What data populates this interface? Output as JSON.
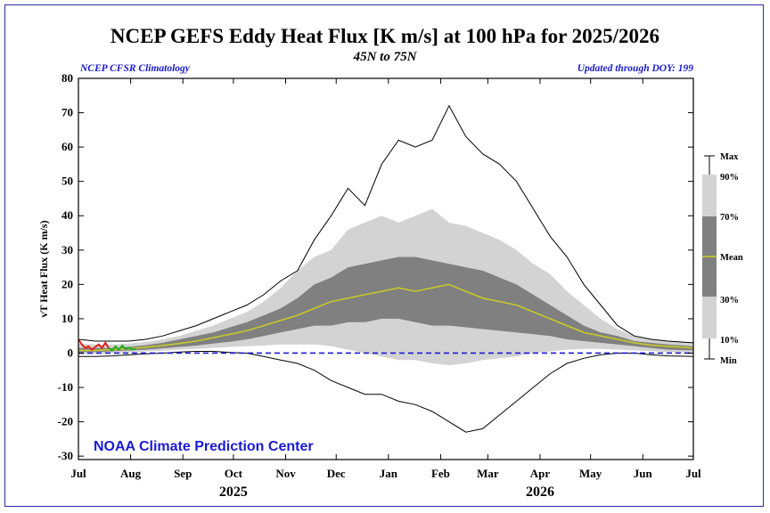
{
  "header": {
    "title": "NCEP GEFS Eddy Heat Flux [K m/s] at 100 hPa for 2025/2026",
    "subtitle": "45N to 75N",
    "left_note": "NCEP CFSR Climatology",
    "right_note": "Updated through DOY: 199",
    "credit": "NOAA Climate Prediction Center"
  },
  "legend": {
    "labels": [
      "Max",
      "90%",
      "70%",
      "Mean",
      "30%",
      "10%",
      "Min"
    ]
  },
  "colors": {
    "band_outer": "#d3d3d3",
    "band_inner": "#808080",
    "mean": "#c8c82a",
    "observed": "#e0201c",
    "forecast": "#22b022",
    "zero_line": "#1a1ad4",
    "frame": "#2a2aa8"
  },
  "chart_data": {
    "type": "area",
    "title": "NCEP GEFS Eddy Heat Flux [K m/s] at 100 hPa for 2025/2026",
    "subtitle": "45N to 75N",
    "ylabel": "vT Heat Flux (K m/s)",
    "xlabel": "",
    "ylim": [
      -31,
      80
    ],
    "yticks": [
      -30,
      -20,
      -10,
      0,
      10,
      20,
      30,
      40,
      50,
      60,
      70,
      80
    ],
    "x_unit": "days since Jul 1 2025",
    "xlim": [
      0,
      365
    ],
    "month_ticks": [
      {
        "label": "Jul",
        "x": 0
      },
      {
        "label": "Aug",
        "x": 31
      },
      {
        "label": "Sep",
        "x": 62
      },
      {
        "label": "Oct",
        "x": 92
      },
      {
        "label": "Nov",
        "x": 123
      },
      {
        "label": "Dec",
        "x": 153
      },
      {
        "label": "Jan",
        "x": 184
      },
      {
        "label": "Feb",
        "x": 215
      },
      {
        "label": "Mar",
        "x": 243
      },
      {
        "label": "Apr",
        "x": 274
      },
      {
        "label": "May",
        "x": 304
      },
      {
        "label": "Jun",
        "x": 335
      },
      {
        "label": "Jul",
        "x": 365
      }
    ],
    "years": [
      {
        "label": "2025",
        "x": 92
      },
      {
        "label": "2026",
        "x": 274
      }
    ],
    "x": [
      0,
      10,
      20,
      30,
      40,
      50,
      60,
      70,
      80,
      90,
      100,
      110,
      120,
      130,
      140,
      150,
      160,
      170,
      180,
      190,
      200,
      210,
      220,
      230,
      240,
      250,
      260,
      270,
      280,
      290,
      300,
      310,
      320,
      330,
      340,
      350,
      365
    ],
    "series": [
      {
        "name": "Max",
        "values": [
          4,
          3.5,
          3.5,
          3.5,
          4,
          5,
          6.5,
          8,
          10,
          12,
          14,
          17,
          21,
          24,
          33,
          40,
          48,
          43,
          55,
          62,
          60,
          62,
          72,
          63,
          58,
          55,
          50,
          42,
          34,
          28,
          20,
          14,
          8,
          5,
          4,
          3.5,
          3
        ]
      },
      {
        "name": "90%",
        "values": [
          2.8,
          2.5,
          2.5,
          2.8,
          3.2,
          4,
          5,
          6.5,
          8,
          10,
          12,
          15,
          19,
          24,
          28,
          30,
          36,
          38,
          40,
          38,
          40,
          42,
          38,
          37,
          35,
          33,
          30,
          26,
          23,
          18,
          14,
          10,
          7,
          5,
          4,
          3.5,
          3
        ]
      },
      {
        "name": "70%",
        "values": [
          1.5,
          1.5,
          1.5,
          1.8,
          2.3,
          3,
          4,
          5,
          6,
          7.5,
          9,
          11,
          13,
          16,
          20,
          22,
          25,
          26,
          27,
          28,
          28,
          27,
          26,
          25,
          24,
          22,
          20,
          17,
          14,
          11,
          8,
          6,
          5,
          3.5,
          3,
          2.5,
          2
        ]
      },
      {
        "name": "Mean",
        "values": [
          0.8,
          0.8,
          1,
          1.3,
          1.7,
          2.2,
          2.8,
          3.5,
          4.5,
          5.5,
          6.5,
          8,
          9.5,
          11,
          13,
          15,
          16,
          17,
          18,
          19,
          18,
          19,
          20,
          18,
          16,
          15,
          14,
          12,
          10,
          8,
          6,
          5,
          4,
          3,
          2.3,
          2,
          1.5
        ]
      },
      {
        "name": "30%",
        "values": [
          0.3,
          0.3,
          0.5,
          0.8,
          1,
          1.4,
          1.8,
          2.2,
          2.8,
          3.3,
          4,
          5,
          6,
          7,
          8,
          8,
          9,
          9,
          10,
          10,
          9,
          8,
          8,
          7.5,
          7,
          6.5,
          6,
          5.5,
          5,
          4,
          3.5,
          3,
          2.5,
          2,
          1.5,
          1,
          0.8
        ]
      },
      {
        "name": "10%",
        "values": [
          -0.3,
          -0.3,
          0,
          0.2,
          0.5,
          0.7,
          1,
          1.2,
          1.5,
          1.8,
          2,
          2.2,
          2.5,
          2.5,
          2.5,
          2,
          1,
          0,
          -1,
          -2,
          -2,
          -3,
          -3.5,
          -3,
          -2,
          -1.5,
          -1,
          0,
          0.5,
          1,
          1.2,
          1.2,
          1,
          0.8,
          0.6,
          0.3,
          0
        ]
      },
      {
        "name": "Min",
        "values": [
          -1,
          -1,
          -0.8,
          -0.5,
          -0.2,
          0,
          0.3,
          0.5,
          0.5,
          0.2,
          0,
          -1,
          -2,
          -3,
          -5,
          -8,
          -10,
          -12,
          -12,
          -14,
          -15,
          -17,
          -20,
          -23,
          -22,
          -18,
          -14,
          -10,
          -6,
          -3,
          -1.5,
          -0.5,
          0,
          0,
          -0.5,
          -0.8,
          -1
        ]
      }
    ],
    "observed": {
      "x": [
        0,
        2,
        4,
        6,
        8,
        10,
        12,
        14,
        16,
        18
      ],
      "values": [
        4,
        2.5,
        1.5,
        2,
        1,
        1.8,
        2.5,
        1.5,
        3,
        1.5
      ]
    },
    "forecast": {
      "x": [
        18,
        20,
        22,
        24,
        26,
        28,
        30,
        32,
        34
      ],
      "values": [
        1.5,
        0.8,
        2,
        1,
        2.2,
        1.2,
        1.6,
        1,
        1.3
      ]
    }
  }
}
